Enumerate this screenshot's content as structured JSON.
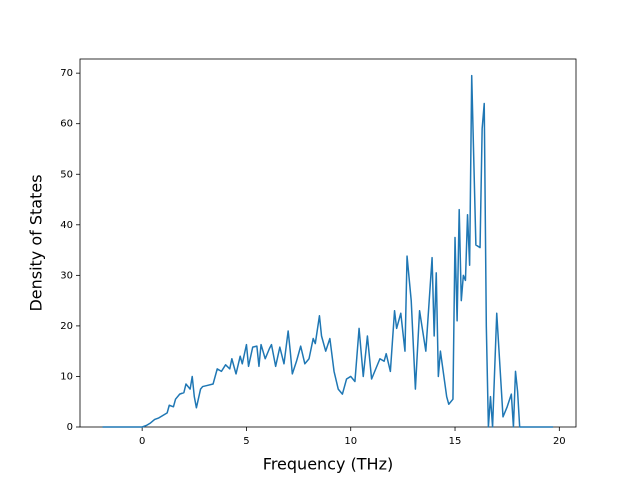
{
  "chart_data": {
    "type": "line",
    "xlabel": "Frequency (THz)",
    "ylabel": "Density of States",
    "x": [
      -1.9,
      -1.0,
      0.0,
      0.2,
      0.4,
      0.6,
      0.8,
      1.0,
      1.2,
      1.3,
      1.5,
      1.6,
      1.8,
      2.0,
      2.1,
      2.3,
      2.4,
      2.5,
      2.6,
      2.8,
      2.9,
      3.1,
      3.4,
      3.6,
      3.8,
      4.0,
      4.2,
      4.3,
      4.5,
      4.7,
      4.8,
      5.0,
      5.1,
      5.3,
      5.5,
      5.6,
      5.7,
      5.9,
      6.1,
      6.2,
      6.4,
      6.6,
      6.8,
      7.0,
      7.1,
      7.2,
      7.4,
      7.6,
      7.8,
      8.0,
      8.2,
      8.3,
      8.5,
      8.6,
      8.8,
      9.0,
      9.2,
      9.4,
      9.6,
      9.8,
      10.0,
      10.2,
      10.4,
      10.6,
      10.8,
      11.0,
      11.2,
      11.4,
      11.6,
      11.7,
      11.9,
      12.1,
      12.2,
      12.4,
      12.6,
      12.7,
      12.9,
      13.1,
      13.3,
      13.6,
      13.9,
      14.0,
      14.1,
      14.2,
      14.3,
      14.6,
      14.7,
      14.9,
      15.0,
      15.1,
      15.2,
      15.3,
      15.4,
      15.5,
      15.6,
      15.7,
      15.8,
      16.0,
      16.2,
      16.3,
      16.4,
      16.5,
      16.6,
      16.7,
      16.8,
      17.0,
      17.3,
      17.5,
      17.7,
      17.8,
      17.9,
      18.0,
      18.1,
      19.0,
      19.7
    ],
    "values": [
      0,
      0,
      0,
      0.3,
      0.8,
      1.5,
      1.8,
      2.3,
      2.8,
      4.3,
      4.0,
      5.5,
      6.5,
      6.8,
      8.5,
      7.5,
      10,
      6.0,
      3.8,
      7.5,
      8.0,
      8.2,
      8.5,
      11.5,
      11.0,
      12.3,
      11.5,
      13.5,
      10.5,
      14.0,
      12.5,
      16.3,
      12.0,
      15.8,
      16.0,
      12.0,
      16.3,
      13.5,
      15.5,
      16.3,
      12.0,
      15.8,
      12.5,
      19.0,
      15.0,
      10.5,
      13.0,
      16.0,
      12.5,
      13.5,
      17.5,
      16.5,
      22.0,
      18.0,
      15.0,
      17.5,
      11.0,
      7.5,
      6.5,
      9.5,
      10.0,
      9.0,
      19.5,
      10.0,
      18.0,
      9.5,
      11.5,
      13.5,
      13.0,
      14.5,
      11.0,
      23.0,
      19.5,
      22.5,
      15.0,
      33.8,
      25.0,
      7.5,
      23.0,
      15.0,
      33.5,
      18.0,
      30.5,
      10.0,
      15.0,
      6.0,
      4.5,
      5.5,
      37.5,
      21.0,
      43.0,
      25.0,
      30.0,
      29.0,
      42.0,
      32.0,
      69.5,
      36.0,
      35.5,
      59.0,
      64.0,
      20.0,
      0,
      6.0,
      0,
      22.5,
      2.0,
      4.0,
      6.5,
      0,
      11.0,
      7.0,
      0,
      0,
      0
    ],
    "color": "#1f77b4",
    "xlim": [
      -2.98,
      20.8
    ],
    "ylim": [
      0,
      72.8
    ],
    "xticks": [
      0,
      5,
      10,
      15,
      20
    ],
    "yticks": [
      0,
      10,
      20,
      30,
      40,
      50,
      60,
      70
    ],
    "grid": false
  }
}
